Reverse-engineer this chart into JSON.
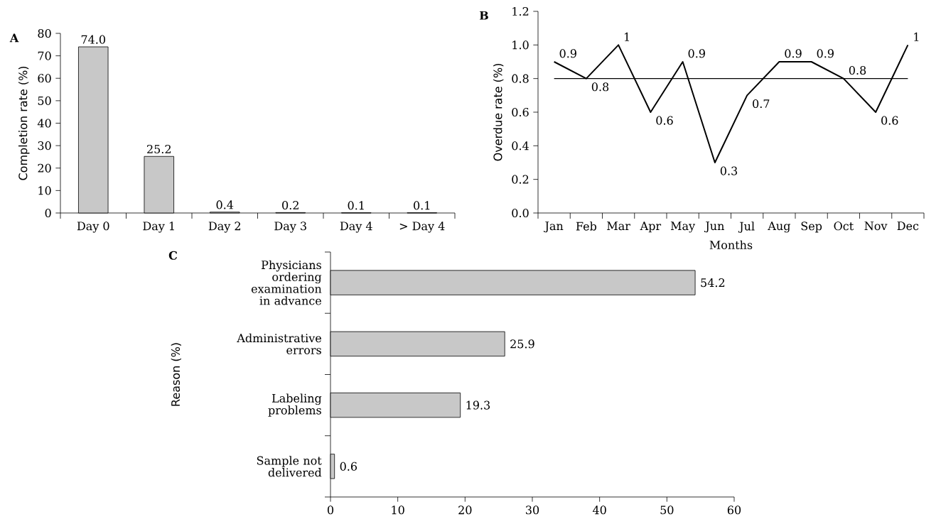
{
  "chart_data": [
    {
      "type": "bar",
      "title": "A",
      "ylabel": "Completion rate (%)",
      "categories": [
        "Day 0",
        "Day 1",
        "Day 2",
        "Day 3",
        "Day 4",
        "> Day 4"
      ],
      "values": [
        74.0,
        25.2,
        0.4,
        0.2,
        0.1,
        0.1
      ],
      "value_labels": [
        "74.0",
        "25.2",
        "0.4",
        "0.2",
        "0.1",
        "0.1"
      ],
      "color": "#c8c8c8",
      "ylim": [
        0,
        80
      ],
      "yticks": [
        0,
        10,
        20,
        30,
        40,
        50,
        60,
        70,
        80
      ]
    },
    {
      "type": "line",
      "title": "B",
      "xlabel": "Months",
      "ylabel": "Overdue rate (%)",
      "categories": [
        "Jan",
        "Feb",
        "Mar",
        "Apr",
        "May",
        "Jun",
        "Jul",
        "Aug",
        "Sep",
        "Oct",
        "Nov",
        "Dec"
      ],
      "values": [
        0.9,
        0.8,
        1,
        0.6,
        0.9,
        0.3,
        0.7,
        0.9,
        0.9,
        0.8,
        0.6,
        1
      ],
      "value_labels": [
        "0.9",
        "0.8",
        "1",
        "0.6",
        "0.9",
        "0.3",
        "0.7",
        "0.9",
        "0.9",
        "0.8",
        "0.6",
        "1"
      ],
      "color": "#000000",
      "ylim": [
        0,
        1.2
      ],
      "yticks": [
        {
          "value": 0,
          "label": "0.0"
        },
        0.2,
        0.4,
        0.6,
        0.8,
        {
          "value": 1,
          "label": "1.0"
        },
        1.2
      ],
      "ref_lines": [
        {
          "axis": "y",
          "value": 0.8,
          "color": "#000000"
        }
      ]
    },
    {
      "type": "bar",
      "orientation": "horizontal",
      "title": "C",
      "ylabel": "Reason (%)",
      "categories": [
        "Physicians ordering examination in advance",
        "Administrative errors",
        "Labeling problems",
        "Sample not delivered"
      ],
      "values": [
        54.2,
        25.9,
        19.3,
        0.6
      ],
      "value_labels": [
        "54.2",
        "25.9",
        "19.3",
        "0.6"
      ],
      "color": "#c8c8c8",
      "xlim": [
        0,
        60
      ],
      "xticks": [
        0,
        10,
        20,
        30,
        40,
        50,
        60
      ]
    }
  ]
}
